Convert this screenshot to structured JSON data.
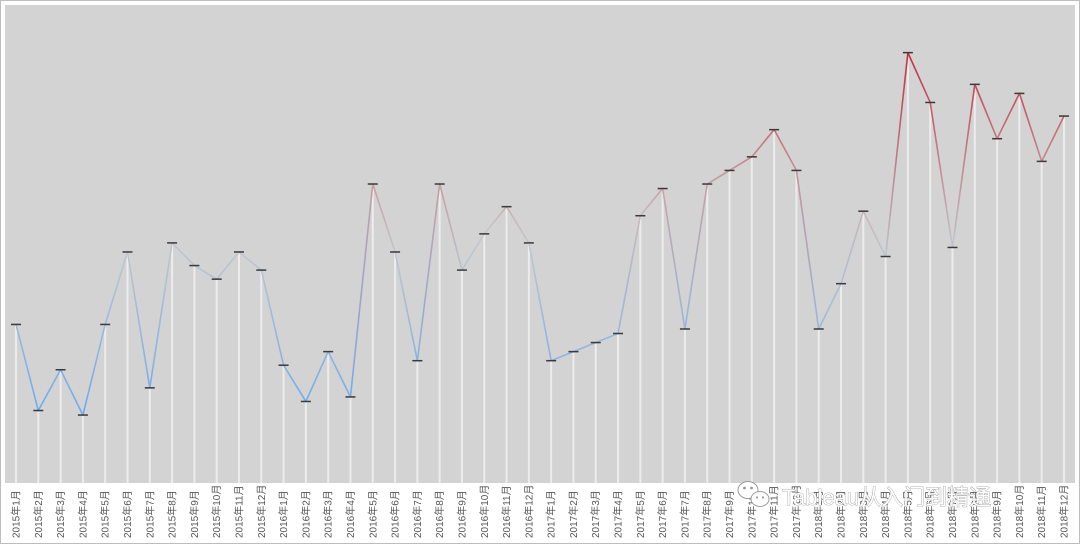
{
  "chart_data": {
    "type": "line",
    "title": "",
    "xlabel": "",
    "ylabel": "",
    "ylim": [
      0,
      100
    ],
    "grid": false,
    "legend": "none",
    "color_low": "#6aaaf0",
    "color_mid": "#c9c9c9",
    "color_high": "#c42a3e",
    "categories": [
      "2015年1月",
      "2015年2月",
      "2015年3月",
      "2015年4月",
      "2015年5月",
      "2015年6月",
      "2015年7月",
      "2015年8月",
      "2015年9月",
      "2015年10月",
      "2015年11月",
      "2015年12月",
      "2016年1月",
      "2016年2月",
      "2016年3月",
      "2016年4月",
      "2016年5月",
      "2016年6月",
      "2016年7月",
      "2016年8月",
      "2016年9月",
      "2016年10月",
      "2016年11月",
      "2016年12月",
      "2017年1月",
      "2017年2月",
      "2017年3月",
      "2017年4月",
      "2017年5月",
      "2017年6月",
      "2017年7月",
      "2017年8月",
      "2017年9月",
      "2017年10月",
      "2017年11月",
      "2017年12月",
      "2018年1月",
      "2018年2月",
      "2018年3月",
      "2018年4月",
      "2018年5月",
      "2018年6月",
      "2018年7月",
      "2018年8月",
      "2018年9月",
      "2018年10月",
      "2018年11月",
      "2018年12月"
    ],
    "series": [
      {
        "values": [
          35,
          16,
          25,
          15,
          35,
          51,
          21,
          53,
          48,
          45,
          51,
          47,
          26,
          18,
          29,
          19,
          66,
          51,
          27,
          66,
          47,
          55,
          61,
          53,
          27,
          29,
          31,
          33,
          59,
          65,
          34,
          66,
          69,
          72,
          78,
          69,
          34,
          44,
          60,
          50,
          95,
          84,
          52,
          88,
          76,
          86,
          71,
          81
        ]
      }
    ]
  },
  "watermark": {
    "icon": "wechat-icon",
    "text": "Tableau从入门到精通"
  }
}
